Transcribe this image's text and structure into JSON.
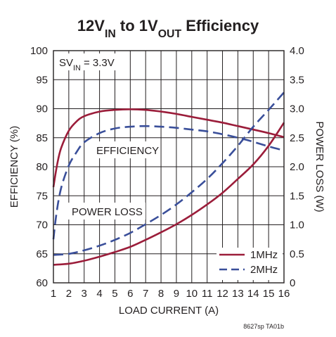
{
  "chart_data": {
    "type": "line",
    "title": {
      "parts": [
        {
          "text": "12V",
          "sub": false
        },
        {
          "text": "IN",
          "sub": true
        },
        {
          "text": " to 1V",
          "sub": false
        },
        {
          "text": "OUT",
          "sub": true
        },
        {
          "text": " Efficiency",
          "sub": false
        }
      ]
    },
    "xlabel": "LOAD CURRENT (A)",
    "ylabel_left": "EFFICIENCY (%)",
    "ylabel_right": "POWER LOSS (W)",
    "xlim": [
      1,
      16
    ],
    "ylim_left": [
      60,
      100
    ],
    "ylim_right": [
      0,
      4.0
    ],
    "x_ticks": [
      "1",
      "2",
      "3",
      "4",
      "5",
      "6",
      "7",
      "8",
      "9",
      "10",
      "11",
      "12",
      "13",
      "14",
      "15",
      "16"
    ],
    "y_left_ticks": [
      "60",
      "65",
      "70",
      "75",
      "80",
      "85",
      "90",
      "95",
      "100"
    ],
    "y_right_ticks": [
      "0",
      "0.5",
      "1.0",
      "1.5",
      "2.0",
      "2.5",
      "3.0",
      "3.5",
      "4.0"
    ],
    "grid": true,
    "legend_position": "bottom-right",
    "annotations": {
      "condition": {
        "parts": [
          {
            "text": "SV",
            "sub": false
          },
          {
            "text": "IN",
            "sub": true
          },
          {
            "text": " = 3.3V",
            "sub": false
          }
        ]
      },
      "efficiency_label": "EFFICIENCY",
      "power_loss_label": "POWER LOSS"
    },
    "figure_id": "8627sp TA01b",
    "series": [
      {
        "name": "1MHz",
        "quantity": "efficiency",
        "axis": "left",
        "color": "#9b1d3a",
        "dash": "solid",
        "points": [
          [
            1,
            76.5
          ],
          [
            1.25,
            80.5
          ],
          [
            1.5,
            83.2
          ],
          [
            2,
            86.2
          ],
          [
            2.5,
            87.8
          ],
          [
            3,
            88.7
          ],
          [
            4,
            89.5
          ],
          [
            5,
            89.8
          ],
          [
            6,
            89.9
          ],
          [
            7,
            89.8
          ],
          [
            8,
            89.5
          ],
          [
            9,
            89.1
          ],
          [
            10,
            88.6
          ],
          [
            11,
            88.1
          ],
          [
            12,
            87.6
          ],
          [
            13,
            87.0
          ],
          [
            14,
            86.4
          ],
          [
            15,
            85.8
          ],
          [
            16,
            85.1
          ]
        ]
      },
      {
        "name": "2MHz",
        "quantity": "efficiency",
        "axis": "left",
        "color": "#3a4f9a",
        "dash": "dashed",
        "points": [
          [
            1,
            67.5
          ],
          [
            1.2,
            72.0
          ],
          [
            1.5,
            76.3
          ],
          [
            2,
            80.2
          ],
          [
            2.5,
            82.5
          ],
          [
            3,
            84.2
          ],
          [
            4,
            85.8
          ],
          [
            5,
            86.6
          ],
          [
            6,
            86.9
          ],
          [
            7,
            87.0
          ],
          [
            8,
            86.9
          ],
          [
            9,
            86.7
          ],
          [
            10,
            86.4
          ],
          [
            11,
            86.1
          ],
          [
            12,
            85.6
          ],
          [
            13,
            85.0
          ],
          [
            14,
            84.3
          ],
          [
            15,
            83.5
          ],
          [
            16,
            82.8
          ]
        ]
      },
      {
        "name": "1MHz",
        "quantity": "power_loss",
        "axis": "right",
        "color": "#9b1d3a",
        "dash": "solid",
        "points": [
          [
            1,
            0.31
          ],
          [
            2,
            0.33
          ],
          [
            3,
            0.38
          ],
          [
            4,
            0.45
          ],
          [
            5,
            0.53
          ],
          [
            6,
            0.62
          ],
          [
            7,
            0.74
          ],
          [
            8,
            0.87
          ],
          [
            9,
            1.01
          ],
          [
            10,
            1.17
          ],
          [
            11,
            1.35
          ],
          [
            12,
            1.55
          ],
          [
            13,
            1.79
          ],
          [
            14,
            2.04
          ],
          [
            15,
            2.36
          ],
          [
            16,
            2.76
          ]
        ]
      },
      {
        "name": "2MHz",
        "quantity": "power_loss",
        "axis": "right",
        "color": "#3a4f9a",
        "dash": "dashed",
        "points": [
          [
            1,
            0.48
          ],
          [
            2,
            0.5
          ],
          [
            3,
            0.56
          ],
          [
            4,
            0.64
          ],
          [
            5,
            0.74
          ],
          [
            6,
            0.86
          ],
          [
            7,
            1.01
          ],
          [
            8,
            1.17
          ],
          [
            9,
            1.35
          ],
          [
            10,
            1.56
          ],
          [
            11,
            1.79
          ],
          [
            12,
            2.06
          ],
          [
            13,
            2.36
          ],
          [
            14,
            2.69
          ],
          [
            15,
            2.98
          ],
          [
            16,
            3.28
          ]
        ]
      }
    ],
    "legend": [
      {
        "label": "1MHz",
        "color": "#9b1d3a",
        "dash": "solid"
      },
      {
        "label": "2MHz",
        "color": "#3a4f9a",
        "dash": "dashed"
      }
    ]
  }
}
